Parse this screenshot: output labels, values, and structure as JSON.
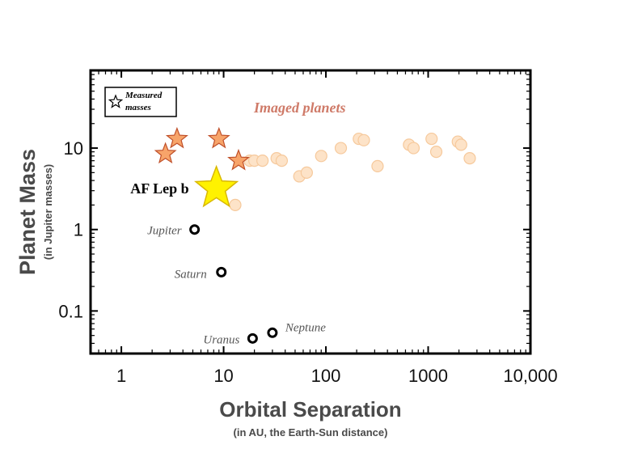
{
  "chart_data": {
    "type": "scatter",
    "xlabel": "Orbital Separation",
    "xlabel_sub": "(in AU, the Earth-Sun distance)",
    "ylabel": "Planet Mass",
    "ylabel_sub": "(in Jupiter masses)",
    "x_scale": "log",
    "y_scale": "log",
    "xlim": [
      0.5,
      10000
    ],
    "ylim": [
      0.03,
      90
    ],
    "x_ticks": [
      {
        "value": 1,
        "label": "1"
      },
      {
        "value": 10,
        "label": "10"
      },
      {
        "value": 100,
        "label": "100"
      },
      {
        "value": 1000,
        "label": "1000"
      },
      {
        "value": 10000,
        "label": "10,000"
      }
    ],
    "y_ticks": [
      {
        "value": 0.1,
        "label": "0.1"
      },
      {
        "value": 1,
        "label": "1"
      },
      {
        "value": 10,
        "label": "10"
      }
    ],
    "grid": false,
    "legend": {
      "position": "top-left",
      "text_line1": "Measured",
      "text_line2": "masses"
    },
    "annotation_imaged": "Imaged planets",
    "colors": {
      "imaged_fill": "#fde3c8",
      "imaged_stroke": "#f6c99c",
      "star_fill": "#f7a46a",
      "star_stroke": "#c0502a",
      "af_lep_fill": "#fff200",
      "af_lep_stroke": "#d9b800",
      "solar_stroke": "#000000",
      "imaged_label": "#cf7a68"
    },
    "series": [
      {
        "name": "Imaged planets",
        "marker": "circle",
        "points": [
          {
            "x": 13,
            "y": 2.0
          },
          {
            "x": 18,
            "y": 7.0
          },
          {
            "x": 20,
            "y": 7.0
          },
          {
            "x": 24,
            "y": 7.0
          },
          {
            "x": 33,
            "y": 7.5
          },
          {
            "x": 37,
            "y": 7.0
          },
          {
            "x": 55,
            "y": 4.5
          },
          {
            "x": 65,
            "y": 5.0
          },
          {
            "x": 90,
            "y": 8.0
          },
          {
            "x": 140,
            "y": 10.0
          },
          {
            "x": 210,
            "y": 13.0
          },
          {
            "x": 235,
            "y": 12.5
          },
          {
            "x": 320,
            "y": 6.0
          },
          {
            "x": 650,
            "y": 11.0
          },
          {
            "x": 720,
            "y": 10.0
          },
          {
            "x": 1080,
            "y": 13.0
          },
          {
            "x": 1200,
            "y": 9.0
          },
          {
            "x": 1950,
            "y": 12.0
          },
          {
            "x": 2100,
            "y": 11.0
          },
          {
            "x": 2550,
            "y": 7.5
          }
        ]
      },
      {
        "name": "Measured masses",
        "marker": "star",
        "points": [
          {
            "x": 2.7,
            "y": 8.5
          },
          {
            "x": 3.5,
            "y": 13.0
          },
          {
            "x": 9.0,
            "y": 13.0
          },
          {
            "x": 14.0,
            "y": 7.0
          }
        ]
      },
      {
        "marker": "big-star",
        "points": [
          {
            "x": 8.5,
            "y": 3.2,
            "label": "AF Lep b"
          }
        ]
      },
      {
        "marker": "ring",
        "points": [
          {
            "x": 5.2,
            "y": 1.0,
            "label": "Jupiter"
          },
          {
            "x": 9.5,
            "y": 0.3,
            "label": "Saturn"
          },
          {
            "x": 19.2,
            "y": 0.046,
            "label": "Uranus"
          },
          {
            "x": 30.0,
            "y": 0.054,
            "label": "Neptune"
          }
        ]
      }
    ]
  }
}
